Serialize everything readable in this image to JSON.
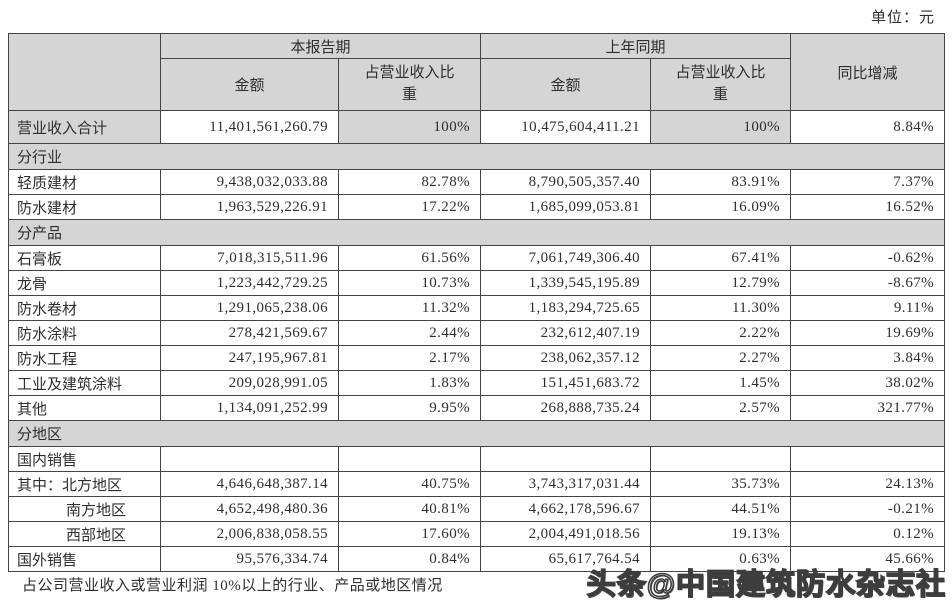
{
  "unit_label": "单位：元",
  "footer_note": "占公司营业收入或营业利润 10%以上的行业、产品或地区情况",
  "watermark": "头条@中国建筑防水杂志社",
  "colors": {
    "header_bg": "#d5d5d5",
    "border": "#444444",
    "text": "#2e2e2e"
  },
  "table": {
    "headers": {
      "current_period": "本报告期",
      "prior_period": "上年同期",
      "yoy": "同比增减",
      "amount": "金额",
      "pct_of_revenue": "占营业收入比重"
    },
    "rows": [
      {
        "type": "total",
        "label": "营业收入合计",
        "cur_amount": "11,401,561,260.79",
        "cur_pct": "100%",
        "prior_amount": "10,475,604,411.21",
        "prior_pct": "100%",
        "yoy": "8.84%"
      },
      {
        "type": "section",
        "label": "分行业"
      },
      {
        "type": "data",
        "label": "轻质建材",
        "cur_amount": "9,438,032,033.88",
        "cur_pct": "82.78%",
        "prior_amount": "8,790,505,357.40",
        "prior_pct": "83.91%",
        "yoy": "7.37%"
      },
      {
        "type": "data",
        "label": "防水建材",
        "cur_amount": "1,963,529,226.91",
        "cur_pct": "17.22%",
        "prior_amount": "1,685,099,053.81",
        "prior_pct": "16.09%",
        "yoy": "16.52%"
      },
      {
        "type": "section",
        "label": "分产品"
      },
      {
        "type": "data",
        "label": "石膏板",
        "cur_amount": "7,018,315,511.96",
        "cur_pct": "61.56%",
        "prior_amount": "7,061,749,306.40",
        "prior_pct": "67.41%",
        "yoy": "-0.62%"
      },
      {
        "type": "data",
        "label": "龙骨",
        "cur_amount": "1,223,442,729.25",
        "cur_pct": "10.73%",
        "prior_amount": "1,339,545,195.89",
        "prior_pct": "12.79%",
        "yoy": "-8.67%"
      },
      {
        "type": "data",
        "label": "防水卷材",
        "cur_amount": "1,291,065,238.06",
        "cur_pct": "11.32%",
        "prior_amount": "1,183,294,725.65",
        "prior_pct": "11.30%",
        "yoy": "9.11%"
      },
      {
        "type": "data",
        "label": "防水涂料",
        "cur_amount": "278,421,569.67",
        "cur_pct": "2.44%",
        "prior_amount": "232,612,407.19",
        "prior_pct": "2.22%",
        "yoy": "19.69%"
      },
      {
        "type": "data",
        "label": "防水工程",
        "cur_amount": "247,195,967.81",
        "cur_pct": "2.17%",
        "prior_amount": "238,062,357.12",
        "prior_pct": "2.27%",
        "yoy": "3.84%"
      },
      {
        "type": "data",
        "label": "工业及建筑涂料",
        "cur_amount": "209,028,991.05",
        "cur_pct": "1.83%",
        "prior_amount": "151,451,683.72",
        "prior_pct": "1.45%",
        "yoy": "38.02%"
      },
      {
        "type": "data",
        "label": "其他",
        "cur_amount": "1,134,091,252.99",
        "cur_pct": "9.95%",
        "prior_amount": "268,888,735.24",
        "prior_pct": "2.57%",
        "yoy": "321.77%"
      },
      {
        "type": "section",
        "label": "分地区"
      },
      {
        "type": "data",
        "label": "国内销售",
        "cur_amount": "",
        "cur_pct": "",
        "prior_amount": "",
        "prior_pct": "",
        "yoy": ""
      },
      {
        "type": "data",
        "label": "其中：北方地区",
        "cur_amount": "4,646,648,387.14",
        "cur_pct": "40.75%",
        "prior_amount": "3,743,317,031.44",
        "prior_pct": "35.73%",
        "yoy": "24.13%"
      },
      {
        "type": "data",
        "indent": true,
        "label": "南方地区",
        "cur_amount": "4,652,498,480.36",
        "cur_pct": "40.81%",
        "prior_amount": "4,662,178,596.67",
        "prior_pct": "44.51%",
        "yoy": "-0.21%"
      },
      {
        "type": "data",
        "indent": true,
        "label": "西部地区",
        "cur_amount": "2,006,838,058.55",
        "cur_pct": "17.60%",
        "prior_amount": "2,004,491,018.56",
        "prior_pct": "19.13%",
        "yoy": "0.12%"
      },
      {
        "type": "data",
        "label": "国外销售",
        "cur_amount": "95,576,334.74",
        "cur_pct": "0.84%",
        "prior_amount": "65,617,764.54",
        "prior_pct": "0.63%",
        "yoy": "45.66%"
      }
    ]
  }
}
